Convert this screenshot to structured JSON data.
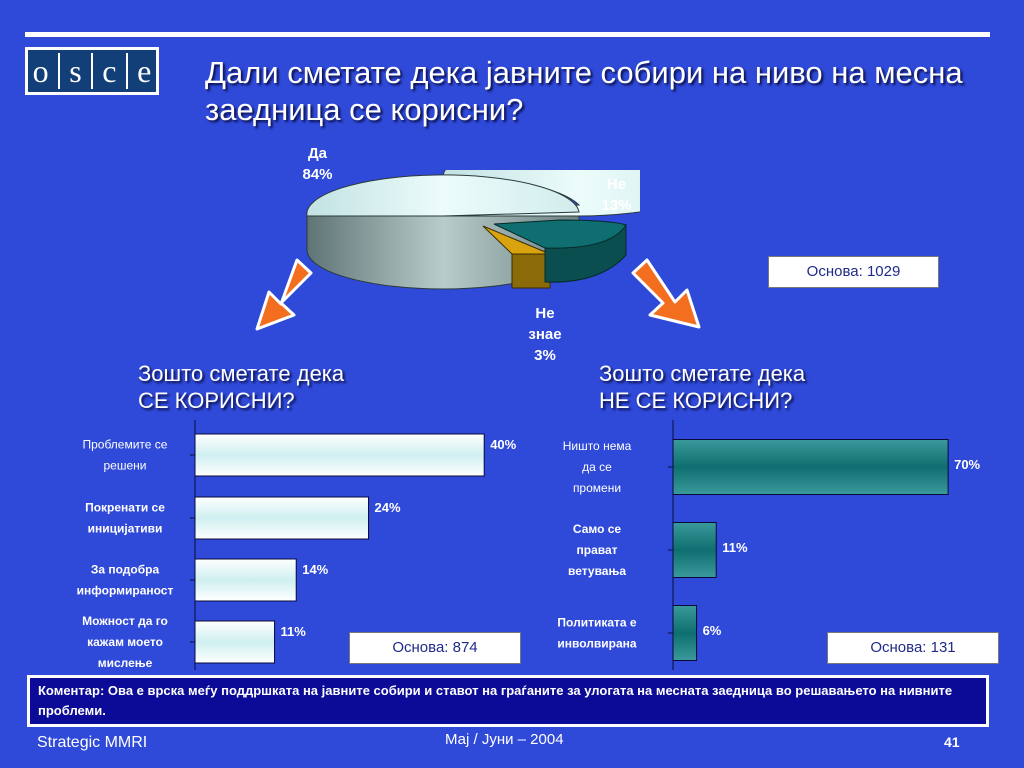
{
  "logo": {
    "letters": [
      "o",
      "s",
      "c",
      "e"
    ]
  },
  "title": "Дали сметате дека јавните собири на ниво на месна заедница се корисни?",
  "pie": {
    "labels": [
      {
        "name": "Да",
        "value": "84%"
      },
      {
        "name": "Не",
        "value": "13%"
      },
      {
        "name_line1": "Не",
        "name_line2": "знае",
        "value": "3%"
      }
    ],
    "base": "Основа: 1029"
  },
  "left_question": {
    "line1": "Зошто сметате дека",
    "line2": "СЕ КОРИСНИ?"
  },
  "right_question": {
    "line1": "Зошто сметате дека",
    "line2": "НЕ СЕ КОРИСНИ?"
  },
  "left_base": "Основа: 874",
  "right_base": "Основа: 131",
  "chart_data": [
    {
      "type": "pie",
      "categories": [
        "Да",
        "Не",
        "Не знае"
      ],
      "values": [
        84,
        13,
        3
      ],
      "colors": [
        "#d3f3f1",
        "#0f6e6f",
        "#d9a310"
      ]
    },
    {
      "type": "bar",
      "orientation": "horizontal",
      "categories": [
        [
          "Проблемите се",
          "решени"
        ],
        [
          "Покренати се",
          "иницијативи"
        ],
        [
          "За подобра",
          "информираност"
        ],
        [
          "Можност да го",
          "кажам моето",
          "мислење"
        ]
      ],
      "values": [
        40,
        24,
        14,
        11
      ],
      "value_labels": [
        "40%",
        "24%",
        "14%",
        "11%"
      ],
      "xlim": [
        0,
        100
      ],
      "color": "#cfeff0"
    },
    {
      "type": "bar",
      "orientation": "horizontal",
      "categories": [
        [
          "Ништо нема",
          "да се",
          "промени"
        ],
        [
          "Само се",
          "прават",
          "ветувања"
        ],
        [
          "Политиката е",
          "инволвирана"
        ]
      ],
      "values": [
        70,
        11,
        6
      ],
      "value_labels": [
        "70%",
        "11%",
        "6%"
      ],
      "xlim": [
        0,
        100
      ],
      "color": "#0f6e6f"
    }
  ],
  "comment": "Коментар: Ова е врска меѓу поддршката на јавните собири и ставот на граѓаните за улогата на месната заедница во решавањето на нивните проблеми.",
  "footer": {
    "left": "Strategic MMRI",
    "center": "Мај / Јуни – 2004",
    "page": "41"
  }
}
